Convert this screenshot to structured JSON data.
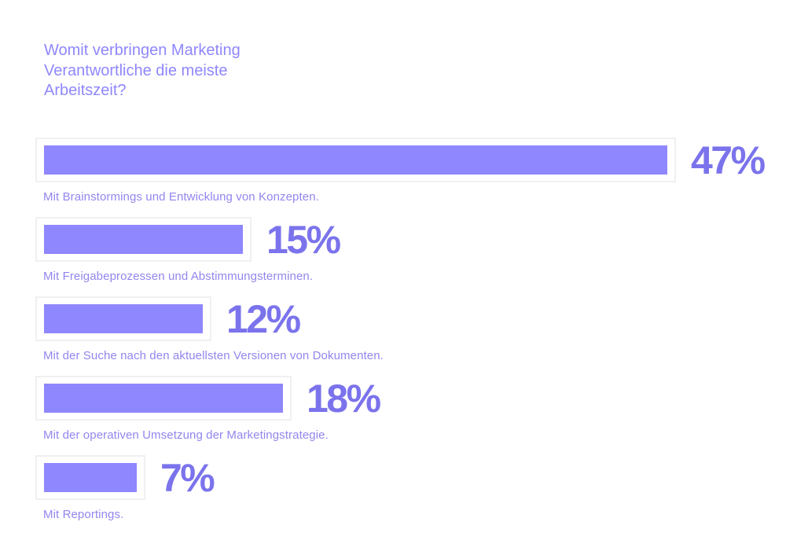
{
  "colors": {
    "accent": "#8f87fd",
    "value_text": "#7b73ec",
    "title_text": "#8f87fd",
    "label_text": "#9186ee"
  },
  "chart_data": {
    "type": "bar",
    "orientation": "horizontal",
    "title": "Womit verbringen Marketing\nVerantwortliche die meiste\nArbeitszeit?",
    "categories": [
      "Mit Brainstormings und Entwicklung von Konzepten.",
      "Mit Freigabeprozessen und Abstimmungsterminen.",
      "Mit der Suche nach den aktuellsten Versionen von Dokumenten.",
      "Mit der operativen Umsetzung der Marketingstrategie.",
      "Mit Reportings."
    ],
    "values": [
      47,
      15,
      12,
      18,
      7
    ],
    "value_labels": [
      "47%",
      "15%",
      "12%",
      "18%",
      "7%"
    ],
    "unit": "%",
    "xlim": [
      0,
      47
    ],
    "grid": false,
    "legend": "none"
  }
}
